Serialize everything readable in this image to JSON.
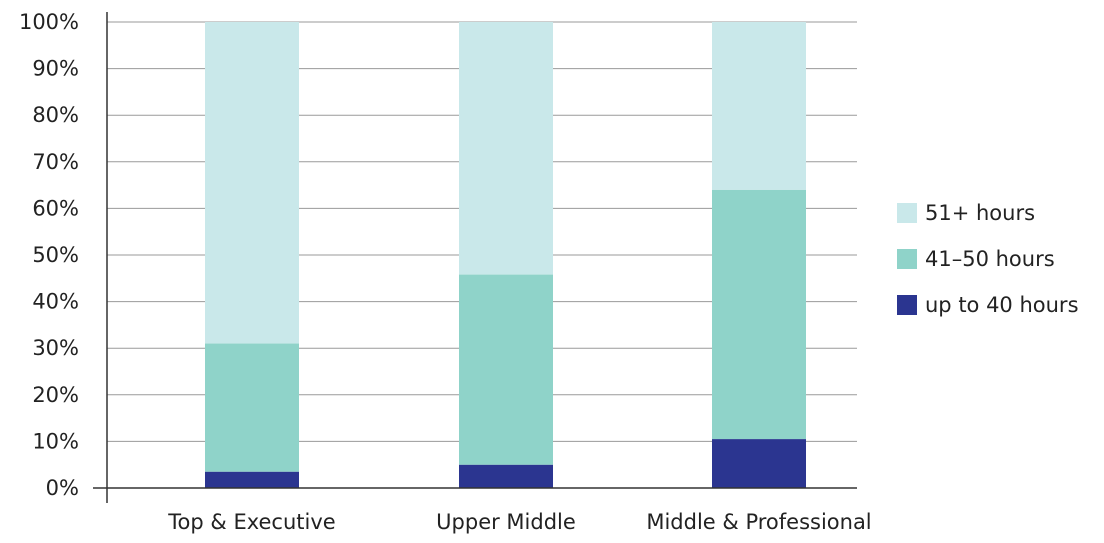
{
  "chart_data": {
    "type": "bar",
    "stacked": true,
    "categories": [
      "Top & Executive",
      "Upper Middle",
      "Middle & Professional"
    ],
    "series": [
      {
        "name": "up to 40 hours",
        "values": [
          3.5,
          5,
          10.5
        ],
        "color": "#2b3590"
      },
      {
        "name": "41–50 hours",
        "values": [
          27.5,
          40.8,
          53.5
        ],
        "color": "#8fd3c9"
      },
      {
        "name": "51+ hours",
        "values": [
          69,
          54.2,
          36
        ],
        "color": "#c9e8ea"
      }
    ],
    "y_ticks": [
      "0%",
      "10%",
      "20%",
      "30%",
      "40%",
      "50%",
      "60%",
      "70%",
      "80%",
      "90%",
      "100%"
    ],
    "ylim": [
      0,
      100
    ],
    "y_unit": "%",
    "grid": true,
    "legend_position": "right",
    "legend_order": [
      "51+ hours",
      "41–50 hours",
      "up to 40 hours"
    ]
  }
}
